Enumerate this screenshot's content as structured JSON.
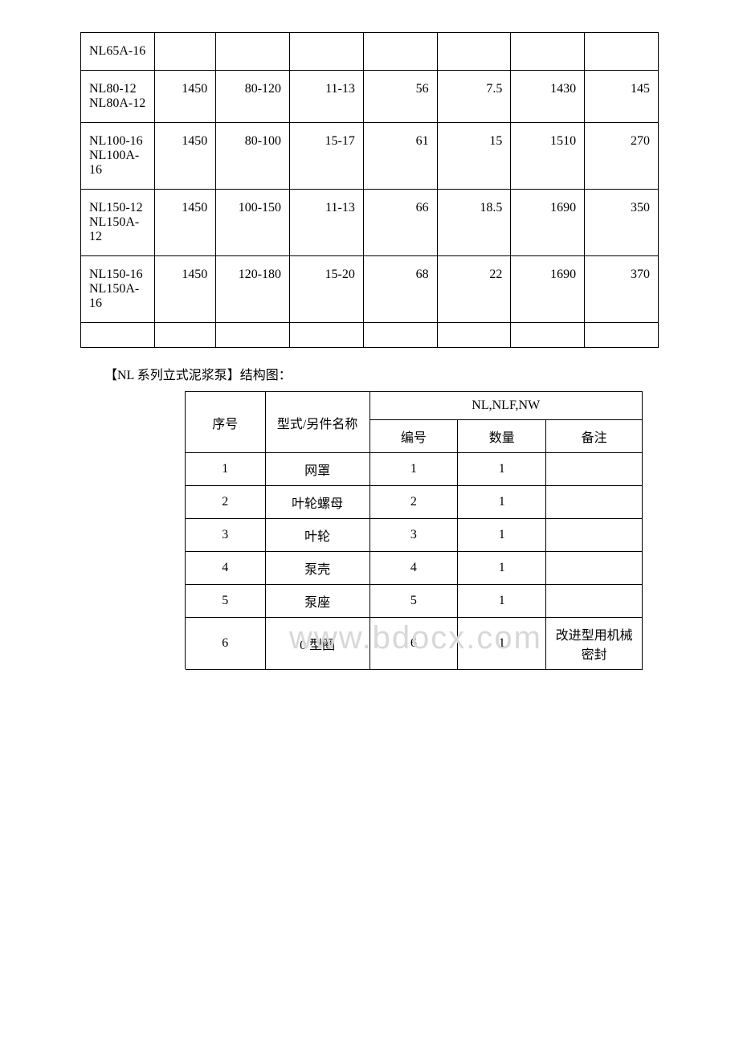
{
  "table1": {
    "rows": [
      {
        "model": "NL65A-16",
        "c2": "",
        "c3": "",
        "c4": "",
        "c5": "",
        "c6": "",
        "c7": "",
        "c8": ""
      },
      {
        "model": "NL80-12 NL80A-12",
        "c2": "1450",
        "c3": "80-120",
        "c4": "11-13",
        "c5": "56",
        "c6": "7.5",
        "c7": "1430",
        "c8": "145"
      },
      {
        "model": "NL100-16 NL100A-16",
        "c2": "1450",
        "c3": "80-100",
        "c4": "15-17",
        "c5": "61",
        "c6": "15",
        "c7": "1510",
        "c8": "270"
      },
      {
        "model": "NL150-12 NL150A-12",
        "c2": "1450",
        "c3": "100-150",
        "c4": "11-13",
        "c5": "66",
        "c6": "18.5",
        "c7": "1690",
        "c8": "350"
      },
      {
        "model": "NL150-16 NL150A-16",
        "c2": "1450",
        "c3": "120-180",
        "c4": "15-20",
        "c5": "68",
        "c6": "22",
        "c7": "1690",
        "c8": "370"
      }
    ]
  },
  "caption": "【NL 系列立式泥浆泵】结构图：",
  "table2": {
    "header": {
      "seq": "序号",
      "type": "型式/另件名称",
      "group": "NL,NLF,NW",
      "num": "编号",
      "qty": "数量",
      "remark": "备注"
    },
    "rows": [
      {
        "seq": "1",
        "name": "网罩",
        "num": "1",
        "qty": "1",
        "remark": ""
      },
      {
        "seq": "2",
        "name": "叶轮螺母",
        "num": "2",
        "qty": "1",
        "remark": ""
      },
      {
        "seq": "3",
        "name": "叶轮",
        "num": "3",
        "qty": "1",
        "remark": ""
      },
      {
        "seq": "4",
        "name": "泵壳",
        "num": "4",
        "qty": "1",
        "remark": ""
      },
      {
        "seq": "5",
        "name": "泵座",
        "num": "5",
        "qty": "1",
        "remark": ""
      },
      {
        "seq": "6",
        "name": "0 型圈",
        "num": "6",
        "qty": "1",
        "remark": "改进型用机械密封"
      }
    ]
  },
  "watermark": "www.bdocx.com",
  "colors": {
    "border": "#000000",
    "background": "#ffffff",
    "watermark": "#d8d8d8"
  }
}
